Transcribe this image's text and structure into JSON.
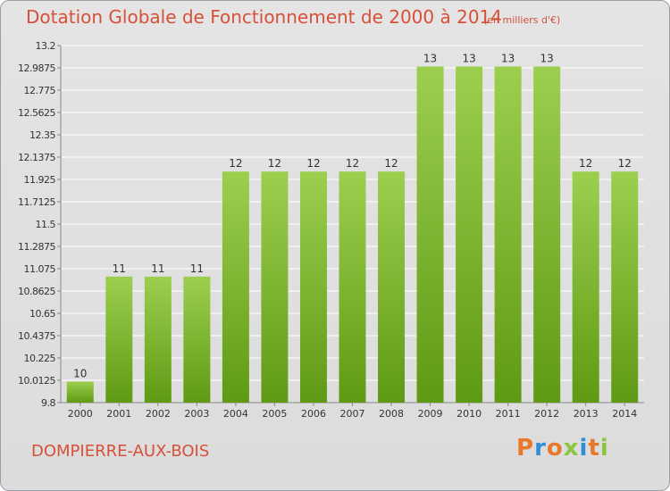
{
  "header": {
    "title": "Dotation Globale de Fonctionnement de 2000 à 2014",
    "unit": "(en milliers d'€)"
  },
  "footer": {
    "commune": "DOMPIERRE-AUX-BOIS",
    "logo_text": "Proxiti",
    "logo_colors": [
      "#e8792b",
      "#2f8fd8",
      "#e8792b",
      "#8cc63f",
      "#2f8fd8",
      "#e8792b",
      "#8cc63f"
    ]
  },
  "colors": {
    "title": "#d6503a",
    "bar_light": "#9ccf4e",
    "bar_dark": "#5f9a14",
    "grid": "#ffffff",
    "axis_text": "#333333"
  },
  "chart_data": {
    "type": "bar",
    "title": "Dotation Globale de Fonctionnement de 2000 à 2014",
    "xlabel": "",
    "ylabel": "",
    "categories": [
      "2000",
      "2001",
      "2002",
      "2003",
      "2004",
      "2005",
      "2006",
      "2007",
      "2008",
      "2009",
      "2010",
      "2011",
      "2012",
      "2013",
      "2014"
    ],
    "values": [
      10,
      11,
      11,
      11,
      12,
      12,
      12,
      12,
      12,
      13,
      13,
      13,
      13,
      12,
      12
    ],
    "data_labels": [
      "10",
      "11",
      "11",
      "11",
      "12",
      "12",
      "12",
      "12",
      "12",
      "13",
      "13",
      "13",
      "13",
      "12",
      "12"
    ],
    "ylim": [
      9.8,
      13.2
    ],
    "yticks": [
      "9.8",
      "10.0125",
      "10.225",
      "10.4375",
      "10.65",
      "10.8625",
      "11.075",
      "11.2875",
      "11.5",
      "11.7125",
      "11.925",
      "12.1375",
      "12.35",
      "12.5625",
      "12.775",
      "12.9875",
      "13.2"
    ],
    "grid": true
  }
}
